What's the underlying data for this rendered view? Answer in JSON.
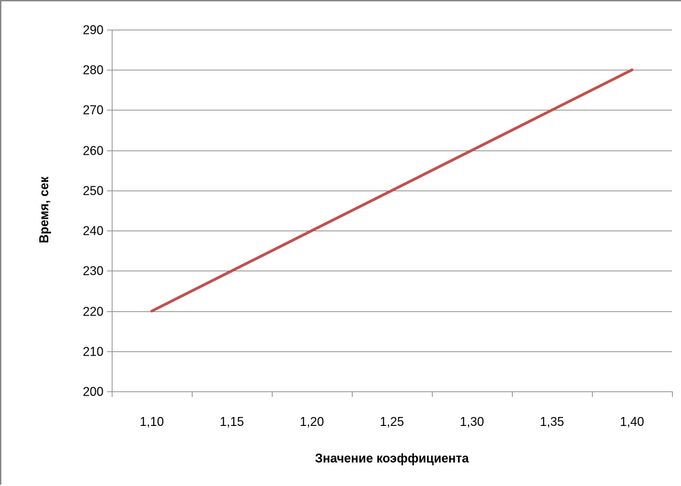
{
  "chart_data": {
    "type": "line",
    "title": "",
    "xlabel": "Значение коэффициента",
    "ylabel": "Время, сек",
    "x": [
      "1,10",
      "1,15",
      "1,20",
      "1,25",
      "1,30",
      "1,35",
      "1,40"
    ],
    "series": [
      {
        "values": [
          220,
          230,
          240,
          250,
          260,
          270,
          280
        ],
        "color": "#c0504d"
      }
    ],
    "yticks": [
      "200",
      "210",
      "220",
      "230",
      "240",
      "250",
      "260",
      "270",
      "280",
      "290"
    ],
    "ylim": [
      200,
      290
    ],
    "grid": true,
    "legend": "none",
    "colors": {
      "line": "#c0504d",
      "grid": "#868686",
      "axis": "#868686"
    }
  }
}
